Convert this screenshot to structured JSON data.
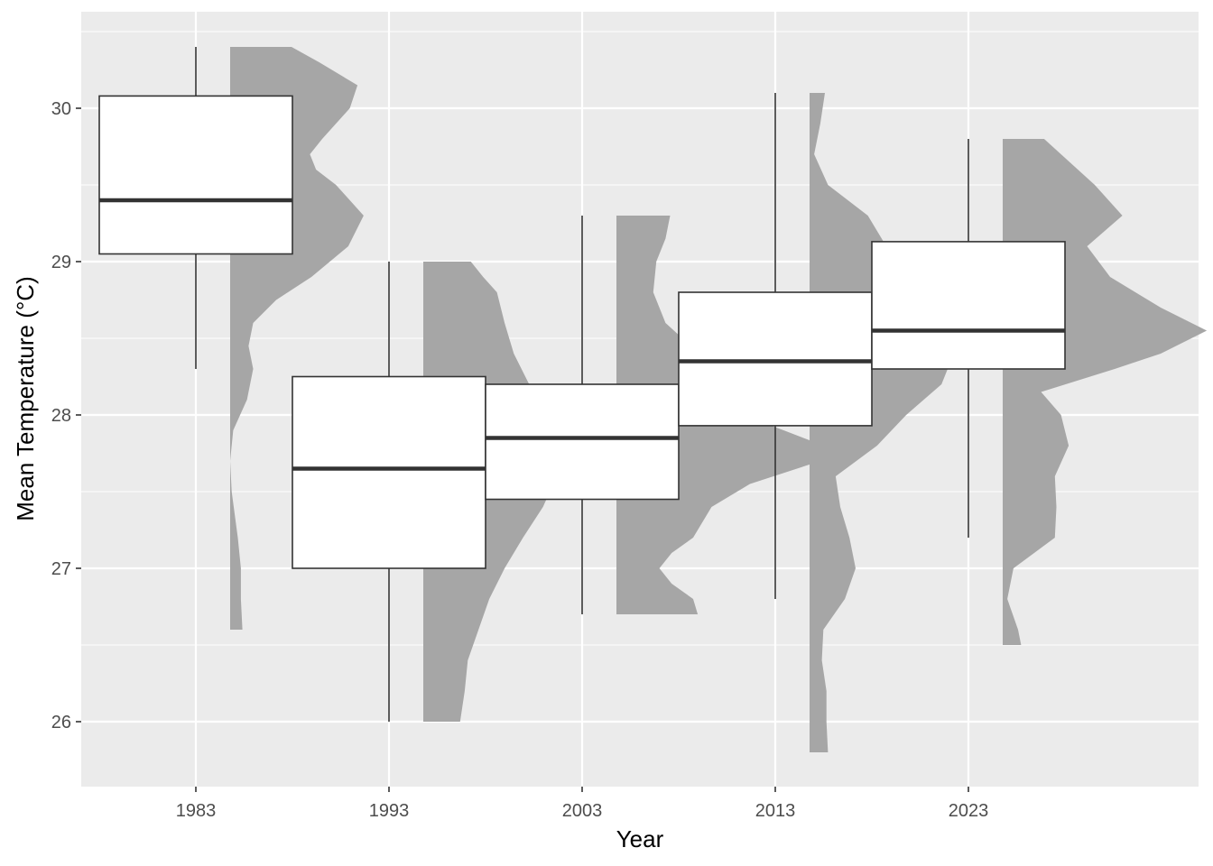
{
  "chart_data": {
    "type": "raincloud",
    "title": "",
    "xlabel": "Year",
    "ylabel": "Mean Temperature (°C)",
    "ylim": [
      25.6,
      30.6
    ],
    "yticks": [
      26,
      27,
      28,
      29,
      30
    ],
    "ytick_labels": [
      "26",
      "27",
      "28",
      "29",
      "30"
    ],
    "categories": [
      "1983",
      "1993",
      "2003",
      "2013",
      "2023"
    ],
    "grid": true,
    "legend": "none",
    "colors": {
      "panel": "#ebebeb",
      "grid": "#ffffff",
      "box_fill": "#ffffff",
      "box_line": "#333333",
      "density": "#a6a6a6"
    },
    "boxplots": [
      {
        "year": "1983",
        "min": 28.3,
        "q1": 29.05,
        "median": 29.4,
        "q3": 30.08,
        "max": 30.4
      },
      {
        "year": "1993",
        "min": 26.0,
        "q1": 27.0,
        "median": 27.65,
        "q3": 28.25,
        "max": 29.0
      },
      {
        "year": "2003",
        "min": 26.7,
        "q1": 27.45,
        "median": 27.85,
        "q3": 28.2,
        "max": 29.3
      },
      {
        "year": "2013",
        "min": 26.8,
        "q1": 27.93,
        "median": 28.35,
        "q3": 28.8,
        "max": 30.1
      },
      {
        "year": "2023",
        "min": 27.2,
        "q1": 28.3,
        "median": 28.55,
        "q3": 29.13,
        "max": 29.8
      }
    ],
    "densities": [
      {
        "year": "1983",
        "points": [
          [
            26.6,
            0.08
          ],
          [
            26.8,
            0.07
          ],
          [
            27.0,
            0.07
          ],
          [
            27.2,
            0.05
          ],
          [
            27.5,
            0.01
          ],
          [
            27.7,
            0.0
          ],
          [
            27.9,
            0.02
          ],
          [
            28.1,
            0.11
          ],
          [
            28.3,
            0.15
          ],
          [
            28.45,
            0.12
          ],
          [
            28.6,
            0.15
          ],
          [
            28.75,
            0.3
          ],
          [
            28.9,
            0.53
          ],
          [
            29.1,
            0.77
          ],
          [
            29.3,
            0.87
          ],
          [
            29.5,
            0.69
          ],
          [
            29.6,
            0.56
          ],
          [
            29.7,
            0.52
          ],
          [
            29.8,
            0.6
          ],
          [
            30.0,
            0.78
          ],
          [
            30.15,
            0.83
          ],
          [
            30.3,
            0.58
          ],
          [
            30.4,
            0.4
          ]
        ]
      },
      {
        "year": "1993",
        "points": [
          [
            26.0,
            0.24
          ],
          [
            26.2,
            0.27
          ],
          [
            26.4,
            0.29
          ],
          [
            26.6,
            0.36
          ],
          [
            26.8,
            0.43
          ],
          [
            27.0,
            0.53
          ],
          [
            27.2,
            0.65
          ],
          [
            27.4,
            0.78
          ],
          [
            27.6,
            0.87
          ],
          [
            27.8,
            0.88
          ],
          [
            28.0,
            0.8
          ],
          [
            28.2,
            0.69
          ],
          [
            28.4,
            0.59
          ],
          [
            28.6,
            0.53
          ],
          [
            28.8,
            0.48
          ],
          [
            28.9,
            0.39
          ],
          [
            29.0,
            0.31
          ]
        ]
      },
      {
        "year": "2003",
        "points": [
          [
            26.7,
            0.53
          ],
          [
            26.8,
            0.5
          ],
          [
            26.9,
            0.36
          ],
          [
            27.0,
            0.28
          ],
          [
            27.1,
            0.36
          ],
          [
            27.2,
            0.5
          ],
          [
            27.4,
            0.62
          ],
          [
            27.55,
            0.87
          ],
          [
            27.7,
            1.33
          ],
          [
            27.8,
            1.35
          ],
          [
            27.9,
            1.09
          ],
          [
            28.0,
            0.82
          ],
          [
            28.2,
            0.6
          ],
          [
            28.35,
            0.56
          ],
          [
            28.5,
            0.43
          ],
          [
            28.6,
            0.32
          ],
          [
            28.8,
            0.24
          ],
          [
            29.0,
            0.26
          ],
          [
            29.15,
            0.32
          ],
          [
            29.3,
            0.35
          ]
        ]
      },
      {
        "year": "2013",
        "points": [
          [
            25.8,
            0.12
          ],
          [
            26.0,
            0.11
          ],
          [
            26.2,
            0.11
          ],
          [
            26.4,
            0.08
          ],
          [
            26.6,
            0.09
          ],
          [
            26.8,
            0.23
          ],
          [
            27.0,
            0.3
          ],
          [
            27.2,
            0.26
          ],
          [
            27.4,
            0.2
          ],
          [
            27.6,
            0.17
          ],
          [
            27.8,
            0.44
          ],
          [
            28.0,
            0.63
          ],
          [
            28.2,
            0.86
          ],
          [
            28.3,
            0.9
          ],
          [
            28.5,
            0.8
          ],
          [
            28.7,
            0.62
          ],
          [
            28.9,
            0.55
          ],
          [
            29.1,
            0.5
          ],
          [
            29.3,
            0.38
          ],
          [
            29.5,
            0.12
          ],
          [
            29.7,
            0.03
          ],
          [
            29.9,
            0.07
          ],
          [
            30.1,
            0.1
          ]
        ]
      },
      {
        "year": "2023",
        "points": [
          [
            26.5,
            0.12
          ],
          [
            26.6,
            0.1
          ],
          [
            26.8,
            0.03
          ],
          [
            27.0,
            0.07
          ],
          [
            27.2,
            0.34
          ],
          [
            27.4,
            0.35
          ],
          [
            27.6,
            0.34
          ],
          [
            27.8,
            0.43
          ],
          [
            28.0,
            0.38
          ],
          [
            28.15,
            0.25
          ],
          [
            28.3,
            0.73
          ],
          [
            28.4,
            1.03
          ],
          [
            28.55,
            1.33
          ],
          [
            28.7,
            1.03
          ],
          [
            28.9,
            0.7
          ],
          [
            29.1,
            0.55
          ],
          [
            29.3,
            0.78
          ],
          [
            29.5,
            0.6
          ],
          [
            29.7,
            0.38
          ],
          [
            29.8,
            0.27
          ]
        ]
      }
    ]
  }
}
